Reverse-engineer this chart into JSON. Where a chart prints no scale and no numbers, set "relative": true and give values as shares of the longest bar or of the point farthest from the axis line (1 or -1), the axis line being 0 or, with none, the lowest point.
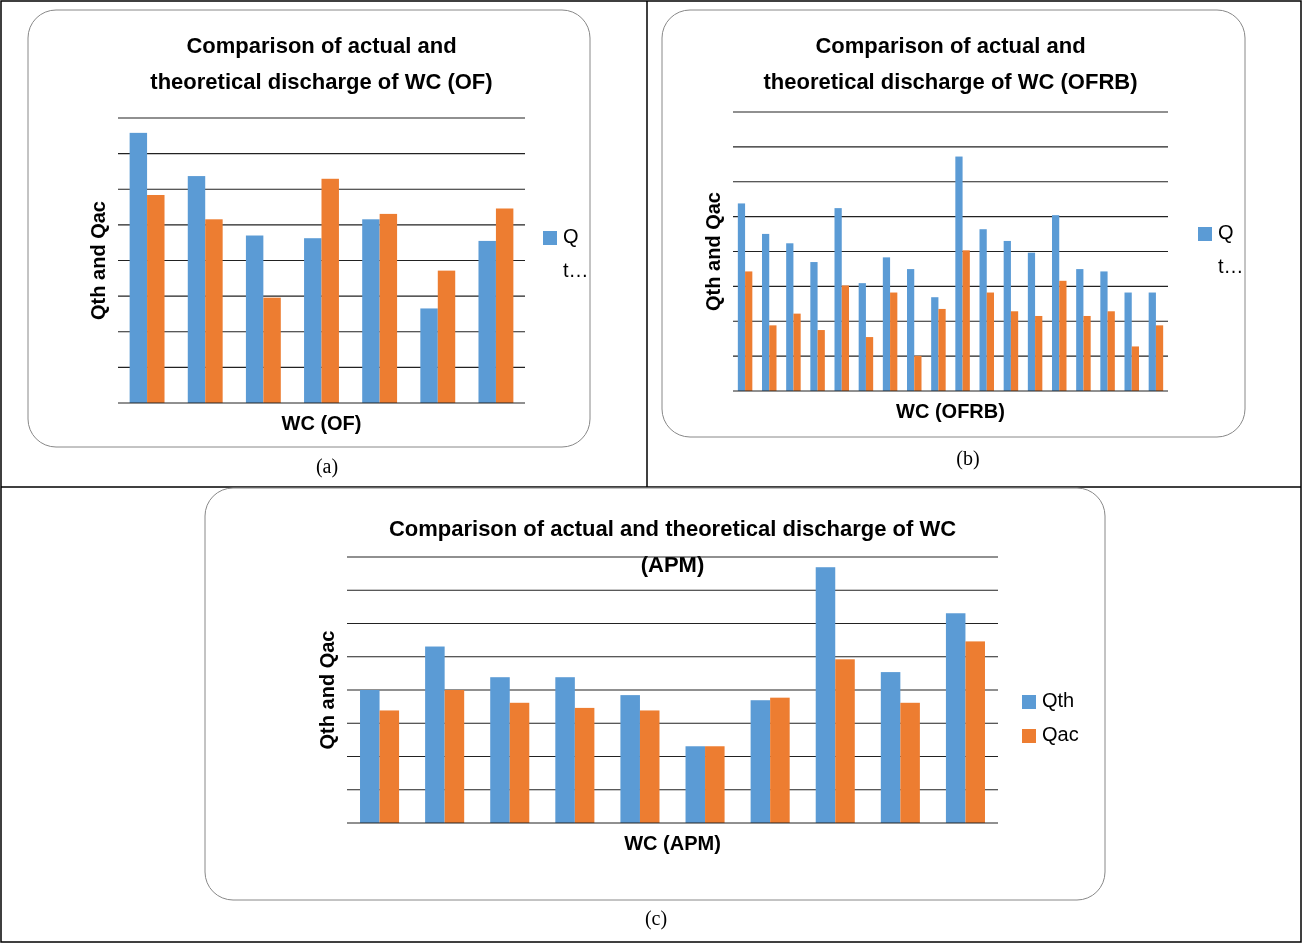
{
  "chart_data": [
    {
      "type": "bar",
      "title": "Comparison of actual and theoretical discharge of WC (OF)",
      "xlabel": "WC (OF)",
      "ylabel": "Qth and Qac",
      "categories": [
        null,
        null,
        null,
        null,
        null,
        null,
        null
      ],
      "relative": true,
      "grid": true,
      "legend": "right",
      "annotations": [
        "(a)"
      ],
      "series": [
        {
          "name": "Q t…",
          "color": "#5b9bd5",
          "values": [
            1,
            0.84,
            0.62,
            0.61,
            0.68,
            0.35,
            0.6
          ]
        },
        {
          "color": "#ed7d31",
          "values": [
            0.77,
            0.68,
            0.39,
            0.83,
            0.7,
            0.49,
            0.72
          ]
        }
      ]
    },
    {
      "type": "bar",
      "title": "Comparison of actual and theoretical discharge of WC (OFRB)",
      "xlabel": "WC (OFRB)",
      "ylabel": "Qth and Qac",
      "categories": [
        null,
        null,
        null,
        null,
        null,
        null,
        null,
        null,
        null,
        null,
        null,
        null,
        null,
        null,
        null,
        null,
        null,
        null
      ],
      "relative": true,
      "grid": true,
      "legend": "right",
      "annotations": [
        "(b)"
      ],
      "series": [
        {
          "name": "Q t…",
          "color": "#5b9bd5",
          "values": [
            0.8,
            0.67,
            0.63,
            0.55,
            0.78,
            0.46,
            0.57,
            0.52,
            0.4,
            1,
            0.69,
            0.64,
            0.59,
            0.75,
            0.52,
            0.51,
            0.42,
            0.42
          ]
        },
        {
          "color": "#ed7d31",
          "values": [
            0.51,
            0.28,
            0.33,
            0.26,
            0.45,
            0.23,
            0.42,
            0.15,
            0.35,
            0.6,
            0.42,
            0.34,
            0.32,
            0.47,
            0.32,
            0.34,
            0.19,
            0.28
          ]
        }
      ]
    },
    {
      "type": "bar",
      "title": "Comparison of actual and theoretical discharge of WC (APM)",
      "xlabel": "WC (APM)",
      "ylabel": "Qth and Qac",
      "categories": [
        null,
        null,
        null,
        null,
        null,
        null,
        null,
        null,
        null,
        null
      ],
      "relative": true,
      "grid": true,
      "legend": "right",
      "annotations": [
        "(c)"
      ],
      "series": [
        {
          "name": "Qth",
          "color": "#5b9bd5",
          "values": [
            0.52,
            0.69,
            0.57,
            0.57,
            0.5,
            0.3,
            0.48,
            1,
            0.59,
            0.82
          ]
        },
        {
          "name": "Qac",
          "color": "#ed7d31",
          "values": [
            0.44,
            0.52,
            0.47,
            0.45,
            0.44,
            0.3,
            0.49,
            0.64,
            0.47,
            0.71
          ]
        }
      ]
    }
  ]
}
